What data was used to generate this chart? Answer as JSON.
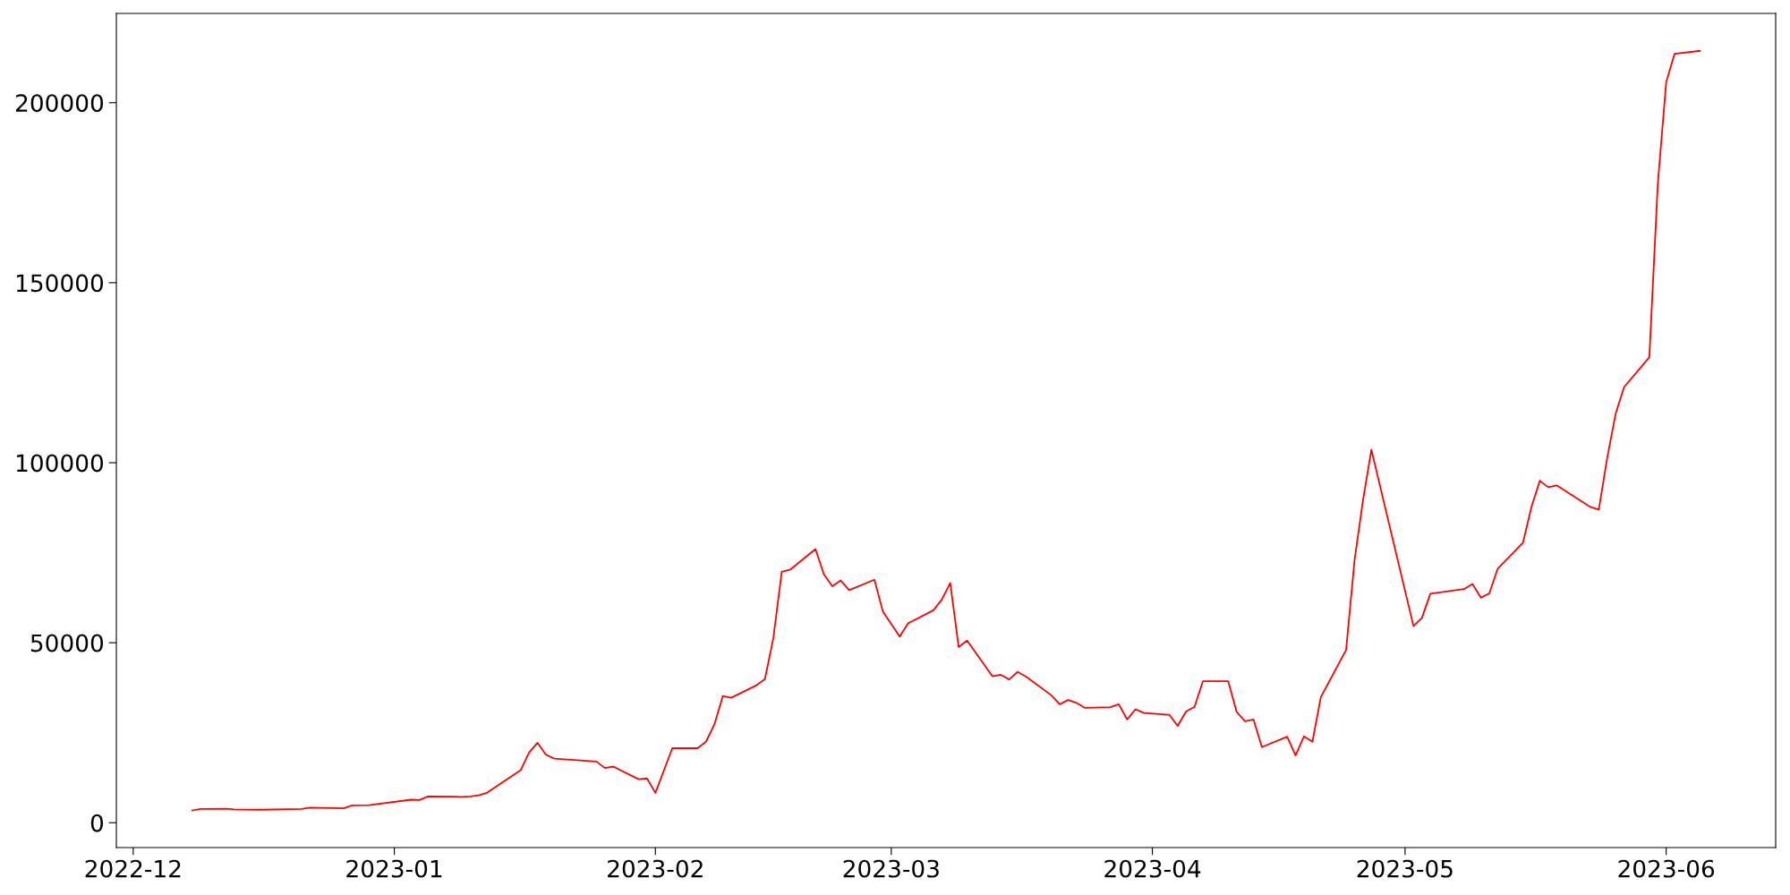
{
  "chart_data": {
    "type": "line",
    "x": [
      "2022-12-08",
      "2022-12-09",
      "2022-12-12",
      "2022-12-13",
      "2022-12-16",
      "2022-12-21",
      "2022-12-22",
      "2022-12-26",
      "2022-12-27",
      "2022-12-29",
      "2023-01-03",
      "2023-01-04",
      "2023-01-05",
      "2023-01-09",
      "2023-01-10",
      "2023-01-11",
      "2023-01-12",
      "2023-01-16",
      "2023-01-17",
      "2023-01-18",
      "2023-01-19",
      "2023-01-20",
      "2023-01-25",
      "2023-01-26",
      "2023-01-27",
      "2023-01-30",
      "2023-01-31",
      "2023-02-01",
      "2023-02-03",
      "2023-02-06",
      "2023-02-07",
      "2023-02-08",
      "2023-02-09",
      "2023-02-10",
      "2023-02-13",
      "2023-02-14",
      "2023-02-15",
      "2023-02-16",
      "2023-02-17",
      "2023-02-20",
      "2023-02-21",
      "2023-02-22",
      "2023-02-23",
      "2023-02-24",
      "2023-02-27",
      "2023-02-28",
      "2023-03-02",
      "2023-03-03",
      "2023-03-06",
      "2023-03-07",
      "2023-03-08",
      "2023-03-09",
      "2023-03-10",
      "2023-03-13",
      "2023-03-14",
      "2023-03-15",
      "2023-03-16",
      "2023-03-17",
      "2023-03-20",
      "2023-03-21",
      "2023-03-22",
      "2023-03-23",
      "2023-03-24",
      "2023-03-27",
      "2023-03-28",
      "2023-03-29",
      "2023-03-30",
      "2023-03-31",
      "2023-04-03",
      "2023-04-04",
      "2023-04-05",
      "2023-04-06",
      "2023-04-07",
      "2023-04-10",
      "2023-04-11",
      "2023-04-12",
      "2023-04-13",
      "2023-04-14",
      "2023-04-17",
      "2023-04-18",
      "2023-04-19",
      "2023-04-20",
      "2023-04-21",
      "2023-04-24",
      "2023-04-25",
      "2023-04-26",
      "2023-04-27",
      "2023-05-02",
      "2023-05-03",
      "2023-05-04",
      "2023-05-08",
      "2023-05-09",
      "2023-05-10",
      "2023-05-11",
      "2023-05-12",
      "2023-05-15",
      "2023-05-16",
      "2023-05-17",
      "2023-05-18",
      "2023-05-19",
      "2023-05-23",
      "2023-05-24",
      "2023-05-25",
      "2023-05-26",
      "2023-05-27",
      "2023-05-30",
      "2023-05-31",
      "2023-06-01",
      "2023-06-02",
      "2023-06-05"
    ],
    "series": [
      {
        "color": "#ff0000",
        "values": [
          3400,
          3800,
          3900,
          3700,
          3600,
          3800,
          4200,
          4000,
          4800,
          4900,
          6400,
          6300,
          7300,
          7200,
          7300,
          7600,
          8300,
          14600,
          19500,
          22200,
          18900,
          17800,
          17000,
          15200,
          15600,
          12100,
          12300,
          8300,
          20700,
          20700,
          22500,
          27300,
          35200,
          34700,
          38200,
          39900,
          51300,
          69700,
          70300,
          76000,
          69000,
          65700,
          67300,
          64600,
          67500,
          58700,
          51700,
          55400,
          59000,
          62000,
          66600,
          48800,
          50600,
          40700,
          41100,
          39800,
          41900,
          40600,
          35400,
          32900,
          34100,
          33300,
          31900,
          32100,
          32900,
          28700,
          31500,
          30500,
          30000,
          26900,
          30900,
          32200,
          39300,
          39300,
          30800,
          28200,
          28700,
          21000,
          23900,
          18700,
          24000,
          22500,
          34900,
          48000,
          72900,
          89500,
          103600,
          54600,
          56900,
          63600,
          64900,
          66300,
          62500,
          63700,
          70600,
          77800,
          87700,
          95000,
          93200,
          93700,
          87700,
          87000,
          101400,
          113600,
          121000,
          129300,
          177300,
          205700,
          213600,
          214400
        ]
      }
    ],
    "xlim": [
      "2022-11-29",
      "2023-06-14"
    ],
    "xticks": [
      {
        "value": "2022-12-01",
        "label": "2022-12"
      },
      {
        "value": "2023-01-01",
        "label": "2023-01"
      },
      {
        "value": "2023-02-01",
        "label": "2023-02"
      },
      {
        "value": "2023-03-01",
        "label": "2023-03"
      },
      {
        "value": "2023-04-01",
        "label": "2023-04"
      },
      {
        "value": "2023-05-01",
        "label": "2023-05"
      },
      {
        "value": "2023-06-01",
        "label": "2023-06"
      }
    ],
    "ylim": [
      -6900,
      224800
    ],
    "yticks": [
      0,
      50000,
      100000,
      150000,
      200000
    ],
    "line_style": "solid"
  }
}
